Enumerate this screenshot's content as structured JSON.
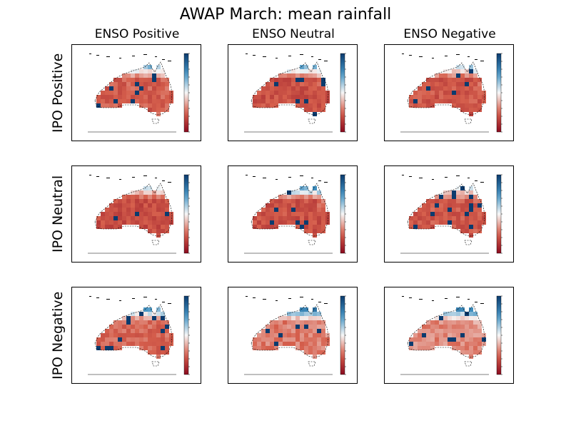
{
  "chart_data": {
    "type": "heatmap",
    "title": "AWAP March: mean rainfall",
    "columns": [
      "ENSO Positive",
      "ENSO Neutral",
      "ENSO Negative"
    ],
    "rows": [
      "IPO Positive",
      "IPO Neutral",
      "IPO Negative"
    ],
    "colormap": "RdBu",
    "colors": {
      "low": "#8b0a1f",
      "mid": "#f7f7f7",
      "high": "#0b3b6e"
    },
    "grid": false,
    "legend": "colorbar-right-of-each-panel",
    "panels": [
      {
        "row": "IPO Positive",
        "column": "ENSO Positive",
        "wet_north": 0.55,
        "base": 0.18
      },
      {
        "row": "IPO Positive",
        "column": "ENSO Neutral",
        "wet_north": 0.65,
        "base": 0.15
      },
      {
        "row": "IPO Positive",
        "column": "ENSO Negative",
        "wet_north": 0.5,
        "base": 0.16
      },
      {
        "row": "IPO Neutral",
        "column": "ENSO Positive",
        "wet_north": 0.45,
        "base": 0.14
      },
      {
        "row": "IPO Neutral",
        "column": "ENSO Neutral",
        "wet_north": 0.7,
        "base": 0.15
      },
      {
        "row": "IPO Neutral",
        "column": "ENSO Negative",
        "wet_north": 0.45,
        "base": 0.17
      },
      {
        "row": "IPO Negative",
        "column": "ENSO Positive",
        "wet_north": 0.6,
        "base": 0.2
      },
      {
        "row": "IPO Negative",
        "column": "ENSO Neutral",
        "wet_north": 0.75,
        "base": 0.24
      },
      {
        "row": "IPO Negative",
        "column": "ENSO Negative",
        "wet_north": 0.65,
        "base": 0.26
      }
    ]
  }
}
